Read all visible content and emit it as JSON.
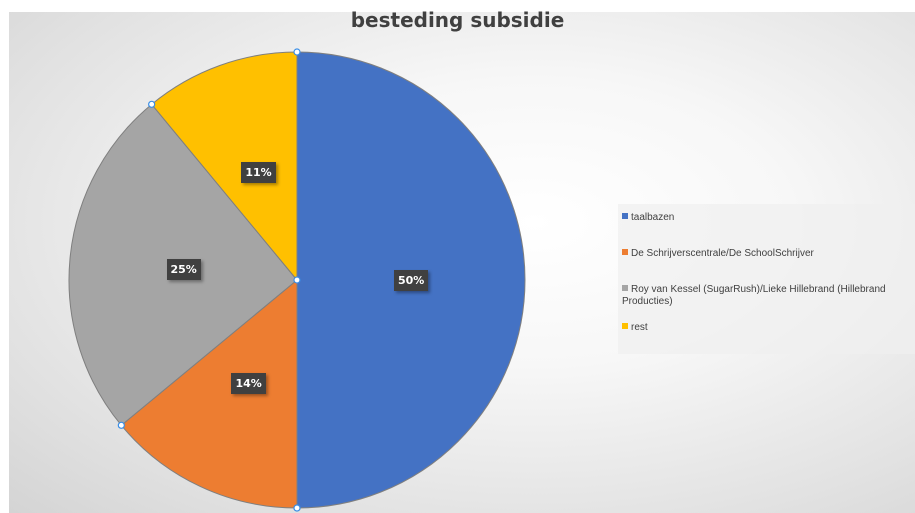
{
  "chart_data": {
    "type": "pie",
    "title": "besteding subsidie",
    "categories": [
      "taalbazen",
      "De Schrijverscentrale/De SchoolSchrijver",
      "Roy van Kessel (SugarRush)/Lieke Hillebrand (Hillebrand Producties)",
      "rest"
    ],
    "values": [
      50,
      14,
      25,
      11
    ],
    "labels": [
      "50%",
      "14%",
      "25%",
      "11%"
    ],
    "colors": [
      "#4472c4",
      "#ed7d31",
      "#a5a5a5",
      "#ffc000"
    ],
    "legend_position": "right",
    "start_angle": "12 o'clock, clockwise"
  }
}
